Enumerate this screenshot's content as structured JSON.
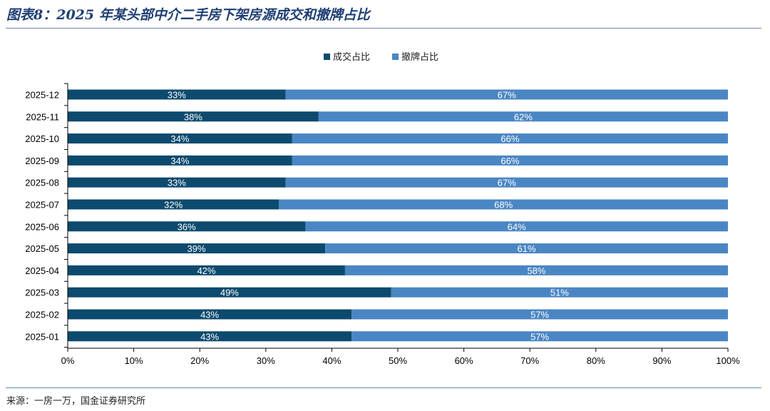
{
  "figure": {
    "title": "图表8：2025 年某头部中介二手房下架房源成交和撤牌占比",
    "source": "来源：一房一万，国金证券研究所"
  },
  "colors": {
    "deal": "#0c4a6e",
    "withdraw": "#4a86c4"
  },
  "chart_data": {
    "type": "bar",
    "orientation": "horizontal",
    "stacked": true,
    "categories": [
      "2025-12",
      "2025-11",
      "2025-10",
      "2025-09",
      "2025-08",
      "2025-07",
      "2025-06",
      "2025-05",
      "2025-04",
      "2025-03",
      "2025-02",
      "2025-01"
    ],
    "series": [
      {
        "name": "成交占比",
        "values": [
          33,
          38,
          34,
          34,
          33,
          32,
          36,
          39,
          42,
          49,
          43,
          43
        ],
        "labels": [
          "33%",
          "38%",
          "34%",
          "34%",
          "33%",
          "32%",
          "36%",
          "39%",
          "42%",
          "49%",
          "43%",
          "43%"
        ]
      },
      {
        "name": "撤牌占比",
        "values": [
          67,
          62,
          66,
          66,
          67,
          68,
          64,
          61,
          58,
          51,
          57,
          57
        ],
        "labels": [
          "67%",
          "62%",
          "66%",
          "66%",
          "67%",
          "68%",
          "64%",
          "61%",
          "58%",
          "51%",
          "57%",
          "57%"
        ]
      }
    ],
    "xlim": [
      0,
      100
    ],
    "x_ticks": [
      "0%",
      "10%",
      "20%",
      "30%",
      "40%",
      "50%",
      "60%",
      "70%",
      "80%",
      "90%",
      "100%"
    ],
    "legend_position": "top-center",
    "grid": false
  }
}
